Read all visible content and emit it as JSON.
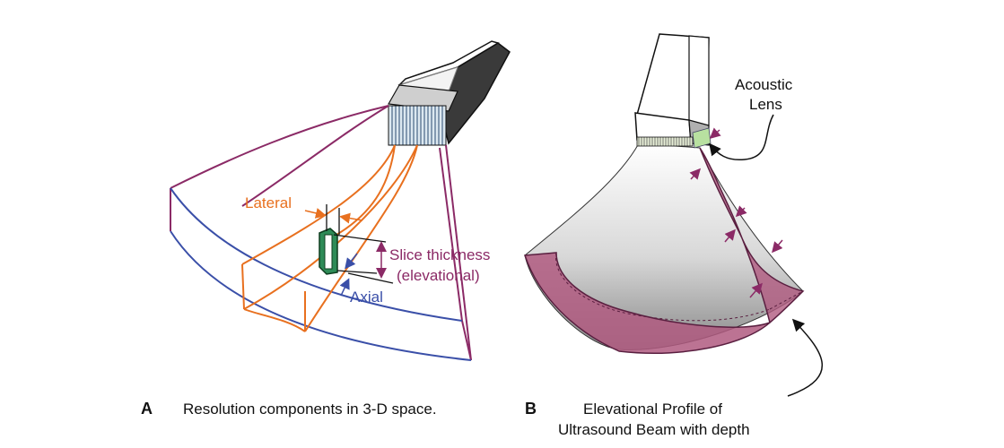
{
  "panel_a": {
    "letter": "A",
    "caption": "Resolution components in 3-D space.",
    "labels": {
      "lateral": "Lateral",
      "slice_line1": "Slice thickness",
      "slice_line2": "(elevational)",
      "axial": "Axial"
    }
  },
  "panel_b": {
    "letter": "B",
    "lens_line1": "Acoustic",
    "lens_line2": "Lens",
    "caption_line1": "Elevational Profile of",
    "caption_line2": "Ultrasound Beam with depth"
  },
  "colors": {
    "sector_outline": "#8b2a66",
    "sector_base": "#3a4fa8",
    "beam": "#e8701f",
    "voxel": "#2e8b57",
    "axial_label": "#3a4fa8",
    "lateral_label": "#e8701f",
    "slice_label": "#8b2a66",
    "beam_profile_fill": "#b05a80",
    "transducer_dark": "#3a3a3a",
    "lens": "#b8e0a0"
  }
}
